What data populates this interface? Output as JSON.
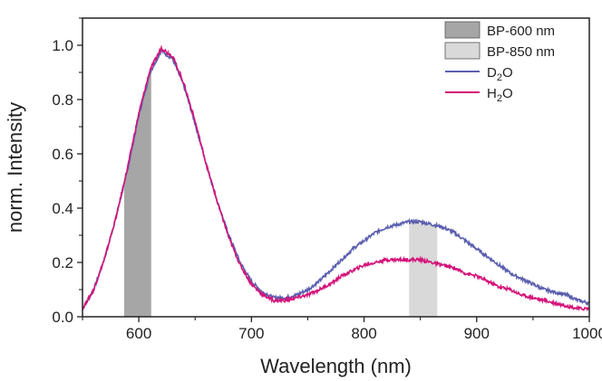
{
  "chart_data": {
    "type": "line",
    "xlabel": "Wavelength (nm)",
    "ylabel": "norm. Intensity",
    "xlim": [
      550,
      1000
    ],
    "ylim": [
      0,
      1.1
    ],
    "x_ticks": [
      600,
      700,
      800,
      900,
      1000
    ],
    "x_tick_labels": [
      "600",
      "700",
      "800",
      "900",
      "1000"
    ],
    "y_ticks": [
      0.0,
      0.2,
      0.4,
      0.6,
      0.8,
      1.0
    ],
    "y_tick_labels": [
      "0.0",
      "0.2",
      "0.4",
      "0.6",
      "0.8",
      "1.0"
    ],
    "grid": false,
    "legend_position": "top-right",
    "series": [
      {
        "name_main": "D",
        "name_sub": "2",
        "name_tail": "O",
        "color": "#5b5fae",
        "x": [
          550,
          560,
          570,
          580,
          590,
          600,
          610,
          620,
          630,
          640,
          650,
          660,
          670,
          680,
          690,
          700,
          710,
          720,
          730,
          740,
          750,
          760,
          770,
          780,
          790,
          800,
          810,
          820,
          830,
          840,
          850,
          860,
          870,
          880,
          890,
          900,
          910,
          920,
          930,
          940,
          950,
          960,
          970,
          980,
          990,
          1000
        ],
        "y": [
          0.03,
          0.1,
          0.22,
          0.37,
          0.54,
          0.74,
          0.9,
          0.98,
          0.95,
          0.85,
          0.71,
          0.56,
          0.42,
          0.3,
          0.2,
          0.13,
          0.09,
          0.07,
          0.07,
          0.08,
          0.1,
          0.13,
          0.17,
          0.21,
          0.25,
          0.28,
          0.31,
          0.33,
          0.34,
          0.35,
          0.35,
          0.34,
          0.33,
          0.31,
          0.28,
          0.25,
          0.22,
          0.19,
          0.16,
          0.14,
          0.12,
          0.1,
          0.09,
          0.08,
          0.06,
          0.05
        ]
      },
      {
        "name_main": "H",
        "name_sub": "2",
        "name_tail": "O",
        "color": "#d4147a",
        "x": [
          550,
          560,
          570,
          580,
          590,
          600,
          610,
          620,
          630,
          640,
          650,
          660,
          670,
          680,
          690,
          700,
          710,
          720,
          730,
          740,
          750,
          760,
          770,
          780,
          790,
          800,
          810,
          820,
          830,
          840,
          850,
          860,
          870,
          880,
          890,
          900,
          910,
          920,
          930,
          940,
          950,
          960,
          970,
          980,
          990,
          1000
        ],
        "y": [
          0.03,
          0.1,
          0.22,
          0.37,
          0.55,
          0.75,
          0.91,
          0.99,
          0.96,
          0.86,
          0.72,
          0.56,
          0.42,
          0.29,
          0.19,
          0.12,
          0.08,
          0.06,
          0.06,
          0.07,
          0.08,
          0.1,
          0.12,
          0.15,
          0.17,
          0.19,
          0.2,
          0.21,
          0.21,
          0.21,
          0.21,
          0.2,
          0.19,
          0.18,
          0.16,
          0.15,
          0.13,
          0.11,
          0.1,
          0.08,
          0.07,
          0.06,
          0.05,
          0.04,
          0.03,
          0.03
        ]
      }
    ],
    "bands": [
      {
        "name": "BP-600 nm",
        "color": "#a6a6a6",
        "from": 587,
        "to": 611
      },
      {
        "name": "BP-850 nm",
        "color": "#d9d9d9",
        "from": 840,
        "to": 865
      }
    ]
  }
}
